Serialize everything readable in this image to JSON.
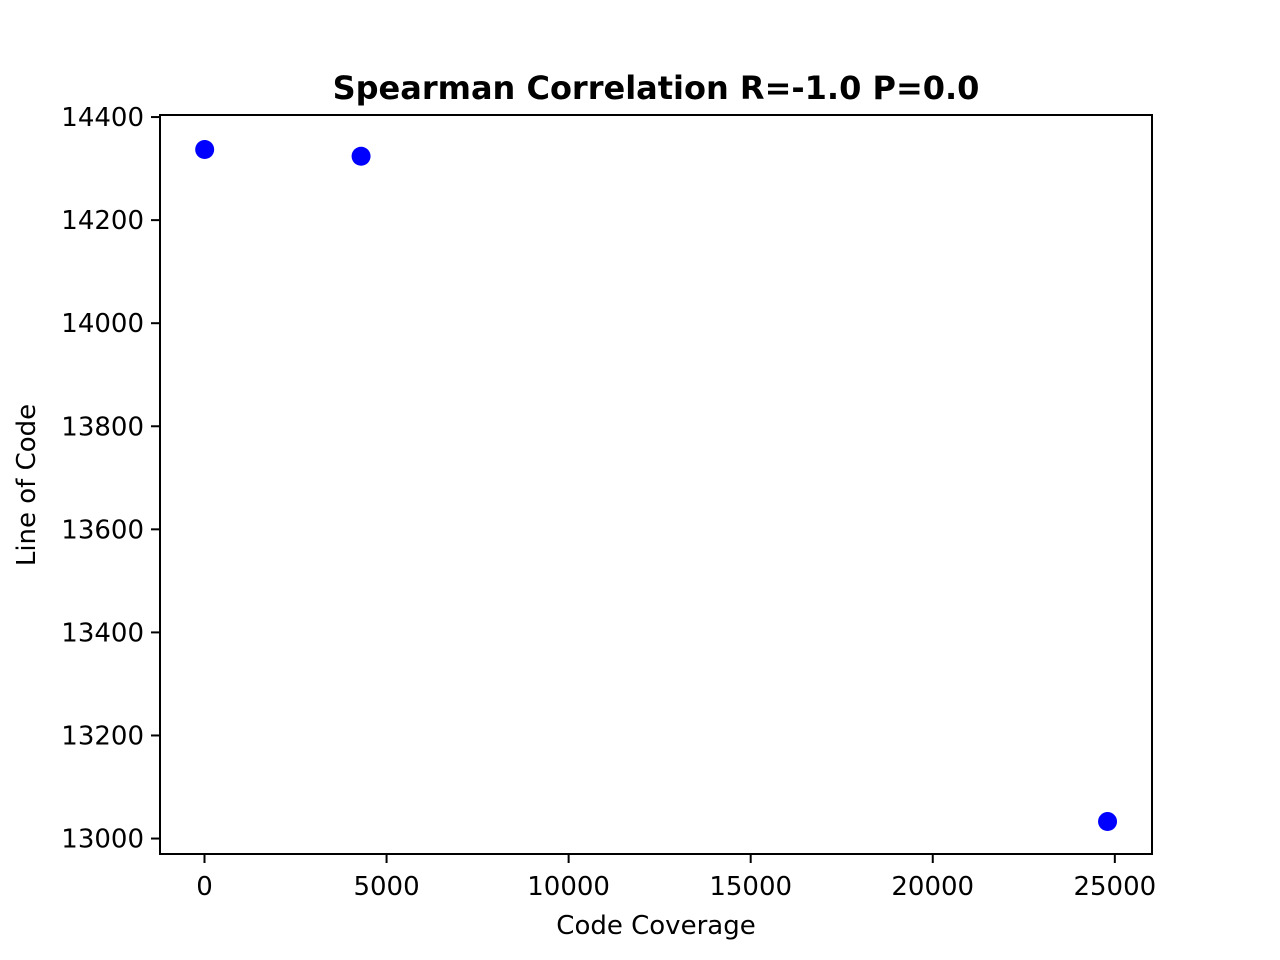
{
  "chart_data": {
    "type": "scatter",
    "title": "Spearman Correlation R=-1.0 P=0.0",
    "xlabel": "Code Coverage",
    "ylabel": "Line of Code",
    "xlim": [
      -1222,
      26021
    ],
    "ylim": [
      12970,
      14404
    ],
    "xticks": [
      0,
      5000,
      10000,
      15000,
      20000,
      25000
    ],
    "yticks": [
      13000,
      13200,
      13400,
      13600,
      13800,
      14000,
      14200,
      14400
    ],
    "grid": false,
    "legend": "none",
    "marker_color": "#0000ff",
    "points": [
      {
        "x": 5,
        "y": 14337
      },
      {
        "x": 4300,
        "y": 14324
      },
      {
        "x": 24800,
        "y": 13033
      }
    ]
  }
}
